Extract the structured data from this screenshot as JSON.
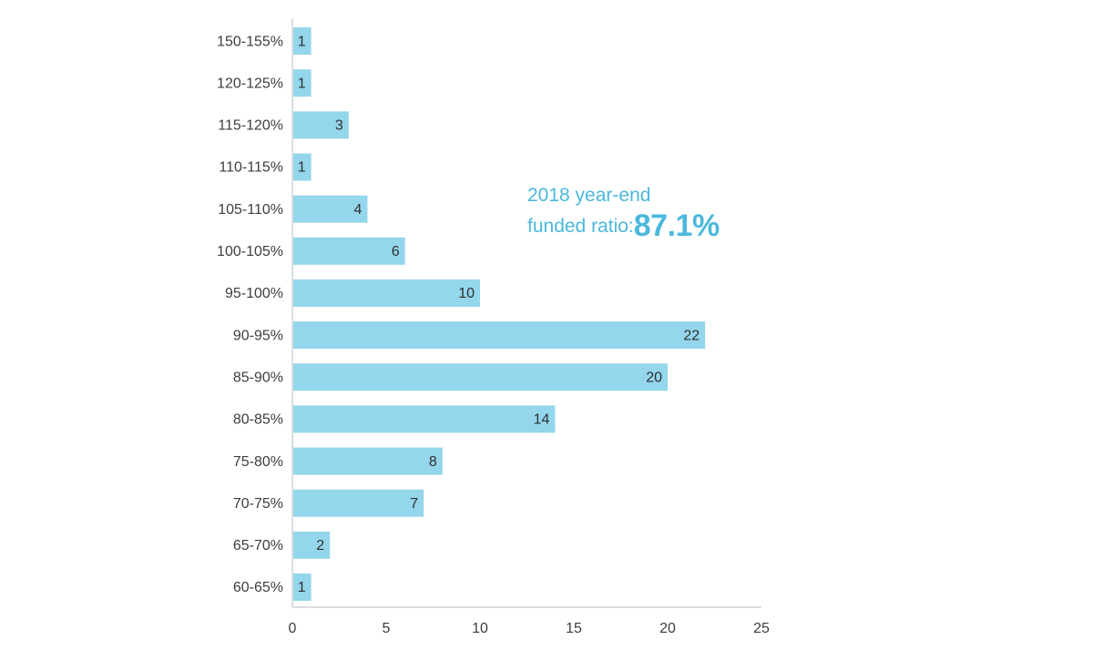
{
  "chart_data": {
    "type": "bar",
    "orientation": "horizontal",
    "categories": [
      "150-155%",
      "120-125%",
      "115-120%",
      "110-115%",
      "105-110%",
      "100-105%",
      "95-100%",
      "90-95%",
      "85-90%",
      "80-85%",
      "75-80%",
      "70-75%",
      "65-70%",
      "60-65%"
    ],
    "values": [
      1,
      1,
      3,
      1,
      4,
      6,
      10,
      22,
      20,
      14,
      8,
      7,
      2,
      1
    ],
    "xlim": [
      0,
      25
    ],
    "xticks": [
      "0",
      "5",
      "10",
      "15",
      "20",
      "25"
    ],
    "grid": false,
    "bar_color": "#94d6ec",
    "annotation": {
      "line1": "2018 year-end",
      "line2": "funded ratio:",
      "value": "87.1%",
      "color": "#4bb8dc"
    }
  }
}
